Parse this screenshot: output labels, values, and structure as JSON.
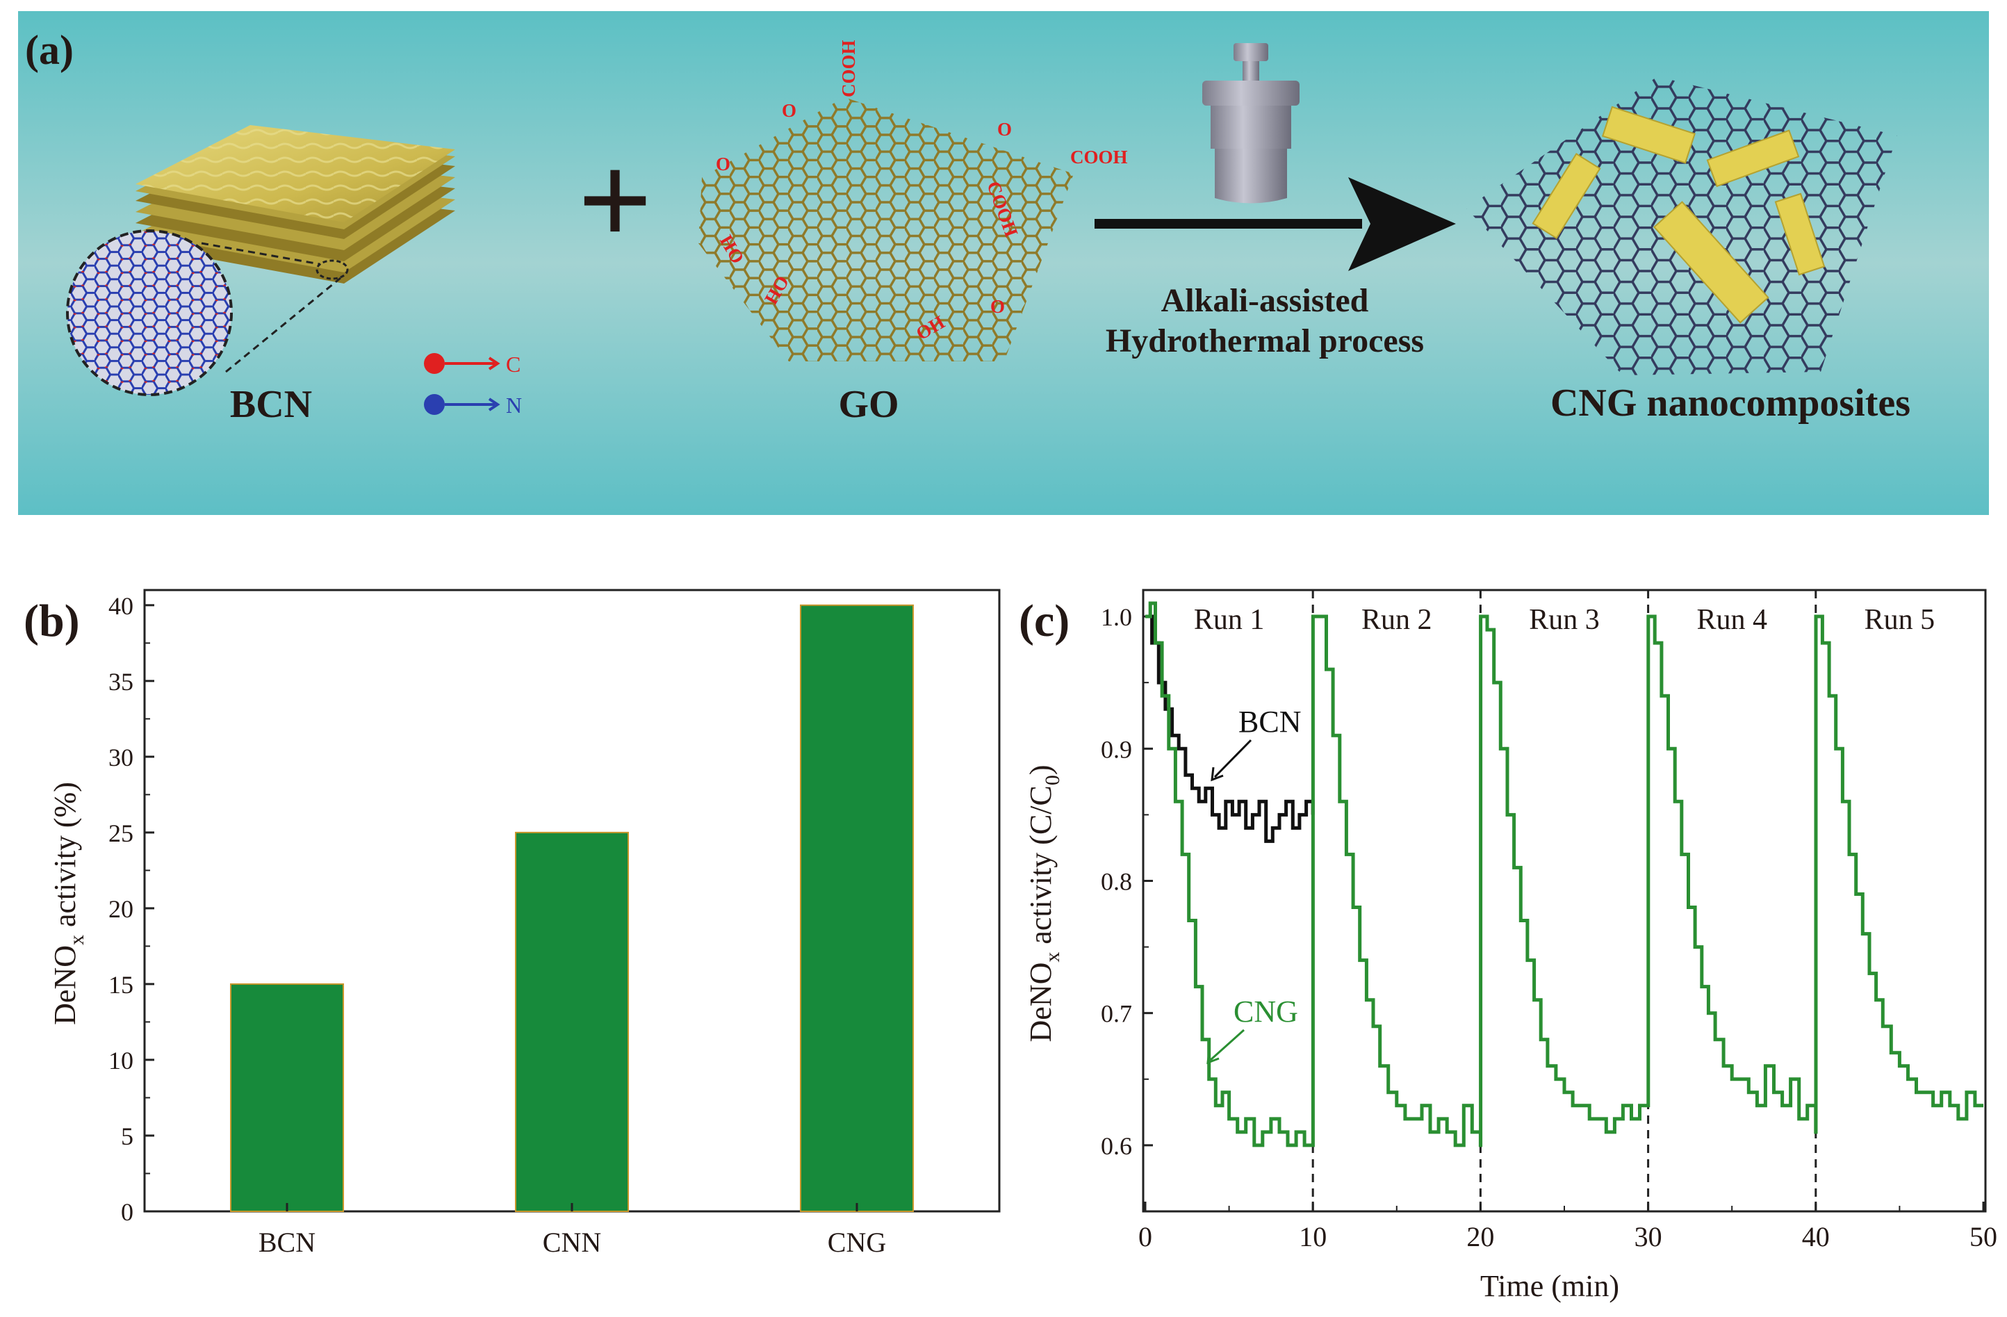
{
  "panel_a": {
    "label": "(a)",
    "bcn_label": "BCN",
    "go_label": "GO",
    "plus": "+",
    "legend_c": "C",
    "legend_n": "N",
    "process_line1": "Alkali-assisted",
    "process_line2": "Hydrothermal process",
    "product_label": "CNG nanocomposites",
    "go_groups": [
      "COOH",
      "O",
      "O",
      "COOH",
      "COOH",
      "HO",
      "HO",
      "O",
      "OH"
    ],
    "colors": {
      "bg_top": "#5ec1c5",
      "bg_mid": "#9ed2d2",
      "bg_bottom": "#5ec1c5",
      "go_lattice": "#8f7a2a",
      "cng_lattice": "#343b5e",
      "sheet": "#d7c565",
      "red": "#e02020",
      "blue": "#2a3fb0"
    }
  },
  "chart_data": [
    {
      "panel": "(b)",
      "type": "bar",
      "categories": [
        "BCN",
        "CNN",
        "CNG"
      ],
      "values": [
        15,
        25,
        40
      ],
      "ylabel_main": "DeNO",
      "ylabel_sub": "x",
      "ylabel_rest": " activity (%)",
      "ylim": [
        0,
        41
      ],
      "yticks": [
        "0",
        "5",
        "10",
        "15",
        "20",
        "25",
        "30",
        "35",
        "40"
      ],
      "color": "#178a3b"
    },
    {
      "panel": "(c)",
      "type": "line",
      "xlabel": "Time (min)",
      "ylabel_main": "DeNO",
      "ylabel_sub": "x",
      "ylabel_rest": " activity (C/C",
      "ylabel_sub2": "0",
      "ylabel_end": ")",
      "xlim": [
        0,
        50
      ],
      "ylim": [
        0.55,
        1.02
      ],
      "xticks": [
        "0",
        "10",
        "20",
        "30",
        "40",
        "50"
      ],
      "yticks": [
        "0.6",
        "0.7",
        "0.8",
        "0.9",
        "1.0"
      ],
      "runs": [
        "Run 1",
        "Run 2",
        "Run 3",
        "Run 4",
        "Run 5"
      ],
      "run_separators": [
        10,
        20,
        30,
        40
      ],
      "annotations": [
        "BCN",
        "CNG"
      ],
      "series": [
        {
          "name": "BCN",
          "color": "#111111",
          "x": [
            0.0,
            0.4,
            0.8,
            1.2,
            1.6,
            2.0,
            2.4,
            2.8,
            3.2,
            3.6,
            4.0,
            4.4,
            4.8,
            5.2,
            5.6,
            6.0,
            6.4,
            6.8,
            7.2,
            7.6,
            8.0,
            8.4,
            8.8,
            9.2,
            9.6,
            10.0
          ],
          "y": [
            1.0,
            0.98,
            0.95,
            0.93,
            0.91,
            0.9,
            0.88,
            0.87,
            0.86,
            0.87,
            0.85,
            0.84,
            0.86,
            0.85,
            0.86,
            0.84,
            0.85,
            0.86,
            0.83,
            0.84,
            0.85,
            0.86,
            0.84,
            0.85,
            0.86,
            0.85
          ]
        },
        {
          "name": "CNG",
          "color": "#2a8f32",
          "x": [
            0.0,
            0.3,
            0.6,
            1.0,
            1.4,
            1.8,
            2.2,
            2.6,
            3.0,
            3.4,
            3.8,
            4.2,
            4.6,
            5.0,
            5.5,
            6.0,
            6.5,
            7.0,
            7.5,
            8.0,
            8.5,
            9.0,
            9.5,
            10.0,
            10.01,
            10.4,
            10.8,
            11.2,
            11.6,
            12.0,
            12.4,
            12.8,
            13.2,
            13.6,
            14.0,
            14.5,
            15.0,
            15.5,
            16.0,
            16.5,
            17.0,
            17.5,
            18.0,
            18.5,
            19.0,
            19.5,
            20.0,
            20.01,
            20.4,
            20.8,
            21.2,
            21.6,
            22.0,
            22.4,
            22.8,
            23.2,
            23.6,
            24.0,
            24.5,
            25.0,
            25.5,
            26.0,
            26.5,
            27.0,
            27.5,
            28.0,
            28.5,
            29.0,
            29.5,
            30.0,
            30.01,
            30.4,
            30.8,
            31.2,
            31.6,
            32.0,
            32.4,
            32.8,
            33.2,
            33.6,
            34.0,
            34.5,
            35.0,
            35.5,
            36.0,
            36.5,
            37.0,
            37.5,
            38.0,
            38.5,
            39.0,
            39.5,
            40.0,
            40.01,
            40.4,
            40.8,
            41.2,
            41.6,
            42.0,
            42.4,
            42.8,
            43.2,
            43.6,
            44.0,
            44.5,
            45.0,
            45.5,
            46.0,
            46.5,
            47.0,
            47.5,
            48.0,
            48.5,
            49.0,
            49.5,
            50.0
          ],
          "y": [
            1.0,
            1.01,
            0.98,
            0.94,
            0.9,
            0.86,
            0.82,
            0.77,
            0.72,
            0.68,
            0.65,
            0.63,
            0.64,
            0.62,
            0.61,
            0.62,
            0.6,
            0.61,
            0.62,
            0.61,
            0.6,
            0.61,
            0.6,
            0.6,
            1.0,
            1.0,
            0.96,
            0.91,
            0.86,
            0.82,
            0.78,
            0.74,
            0.71,
            0.69,
            0.66,
            0.64,
            0.63,
            0.62,
            0.62,
            0.63,
            0.61,
            0.62,
            0.61,
            0.6,
            0.63,
            0.61,
            0.6,
            1.0,
            0.99,
            0.95,
            0.9,
            0.85,
            0.81,
            0.77,
            0.74,
            0.71,
            0.68,
            0.66,
            0.65,
            0.64,
            0.63,
            0.63,
            0.62,
            0.62,
            0.61,
            0.62,
            0.63,
            0.62,
            0.63,
            0.63,
            1.0,
            0.98,
            0.94,
            0.9,
            0.86,
            0.82,
            0.78,
            0.75,
            0.72,
            0.7,
            0.68,
            0.66,
            0.65,
            0.65,
            0.64,
            0.63,
            0.66,
            0.64,
            0.63,
            0.65,
            0.62,
            0.63,
            0.61,
            1.0,
            0.98,
            0.94,
            0.9,
            0.86,
            0.82,
            0.79,
            0.76,
            0.73,
            0.71,
            0.69,
            0.67,
            0.66,
            0.65,
            0.64,
            0.64,
            0.63,
            0.64,
            0.63,
            0.62,
            0.64,
            0.63,
            0.63
          ]
        }
      ]
    }
  ]
}
